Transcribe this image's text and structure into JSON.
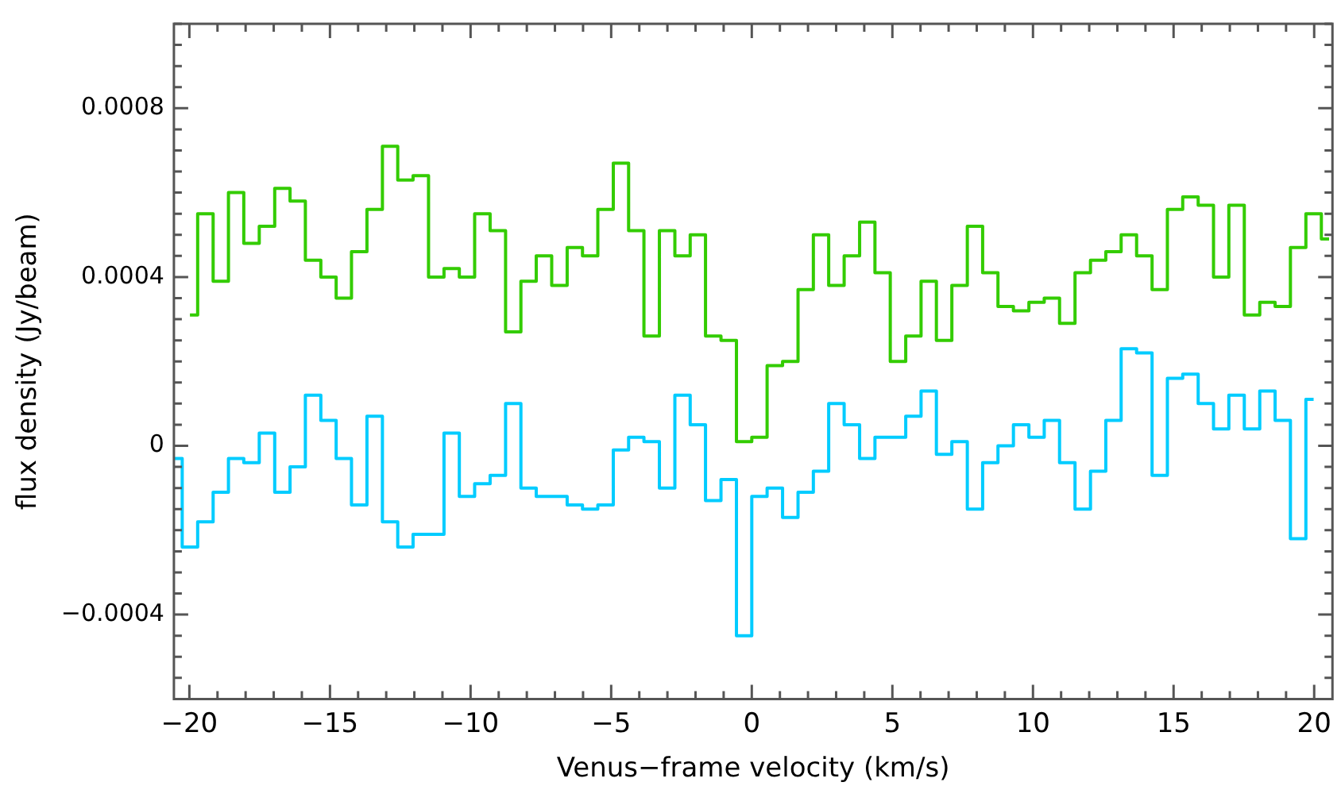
{
  "chart_data": {
    "type": "step",
    "xlabel": "Venus−frame velocity (km/s)",
    "ylabel": "flux density (Jy/beam)",
    "xlim": [
      -20.55,
      20.65
    ],
    "ylim": [
      -0.0006,
      0.001
    ],
    "xticks": [
      {
        "value": -20,
        "label": "−20"
      },
      {
        "value": -19,
        "label": null
      },
      {
        "value": -18,
        "label": null
      },
      {
        "value": -17,
        "label": null
      },
      {
        "value": -16,
        "label": null
      },
      {
        "value": -15,
        "label": "−15"
      },
      {
        "value": -14,
        "label": null
      },
      {
        "value": -13,
        "label": null
      },
      {
        "value": -12,
        "label": null
      },
      {
        "value": -11,
        "label": null
      },
      {
        "value": -10,
        "label": "−10"
      },
      {
        "value": -9,
        "label": null
      },
      {
        "value": -8,
        "label": null
      },
      {
        "value": -7,
        "label": null
      },
      {
        "value": -6,
        "label": null
      },
      {
        "value": -5,
        "label": "−5"
      },
      {
        "value": -4,
        "label": null
      },
      {
        "value": -3,
        "label": null
      },
      {
        "value": -2,
        "label": null
      },
      {
        "value": -1,
        "label": null
      },
      0,
      {
        "value": 1,
        "label": null
      },
      {
        "value": 2,
        "label": null
      },
      {
        "value": 3,
        "label": null
      },
      {
        "value": 4,
        "label": null
      },
      5,
      {
        "value": 6,
        "label": null
      },
      {
        "value": 7,
        "label": null
      },
      {
        "value": 8,
        "label": null
      },
      {
        "value": 9,
        "label": null
      },
      10,
      {
        "value": 11,
        "label": null
      },
      {
        "value": 12,
        "label": null
      },
      {
        "value": 13,
        "label": null
      },
      {
        "value": 14,
        "label": null
      },
      15,
      {
        "value": 16,
        "label": null
      },
      {
        "value": 17,
        "label": null
      },
      {
        "value": 18,
        "label": null
      },
      {
        "value": 19,
        "label": null
      },
      20
    ],
    "yticks": [
      {
        "value": -0.0006,
        "label": null
      },
      {
        "value": -0.00055,
        "label": null
      },
      {
        "value": -0.0005,
        "label": null
      },
      {
        "value": -0.00045,
        "label": null
      },
      {
        "value": -0.0004,
        "label": "−0.0004"
      },
      {
        "value": -0.00035,
        "label": null
      },
      {
        "value": -0.0003,
        "label": null
      },
      {
        "value": -0.00025,
        "label": null
      },
      {
        "value": -0.0002,
        "label": null
      },
      {
        "value": -0.00015,
        "label": null
      },
      {
        "value": -0.0001,
        "label": null
      },
      {
        "value": -5e-05,
        "label": null
      },
      0,
      {
        "value": 5e-05,
        "label": null
      },
      {
        "value": 0.0001,
        "label": null
      },
      {
        "value": 0.00015,
        "label": null
      },
      {
        "value": 0.0002,
        "label": null
      },
      {
        "value": 0.00025,
        "label": null
      },
      {
        "value": 0.0003,
        "label": null
      },
      {
        "value": 0.00035,
        "label": null
      },
      0.0004,
      {
        "value": 0.00045,
        "label": null
      },
      {
        "value": 0.0005,
        "label": null
      },
      {
        "value": 0.00055,
        "label": null
      },
      {
        "value": 0.0006,
        "label": null
      },
      {
        "value": 0.00065,
        "label": null
      },
      {
        "value": 0.0007,
        "label": null
      },
      {
        "value": 0.00075,
        "label": null
      },
      0.0008,
      {
        "value": 0.00085,
        "label": null
      },
      {
        "value": 0.0009,
        "label": null
      },
      {
        "value": 0.00095,
        "label": null
      },
      {
        "value": 0.001,
        "label": null
      }
    ],
    "marker": "none",
    "series": [
      {
        "color": "#33cc00",
        "x": [
          -19.98,
          -19.43,
          -18.88,
          -18.34,
          -17.79,
          -17.24,
          -16.69,
          -16.15,
          -15.6,
          -15.05,
          -14.51,
          -13.96,
          -13.41,
          -12.86,
          -12.32,
          -11.77,
          -11.22,
          -10.67,
          -10.13,
          -9.58,
          -9.03,
          -8.48,
          -7.94,
          -7.39,
          -6.84,
          -6.29,
          -5.75,
          -5.2,
          -4.65,
          -4.11,
          -3.56,
          -3.01,
          -2.46,
          -1.92,
          -1.37,
          -0.82,
          -0.27,
          0.27,
          0.82,
          1.37,
          1.92,
          2.46,
          3.01,
          3.56,
          4.11,
          4.65,
          5.2,
          5.75,
          6.29,
          6.84,
          7.39,
          7.94,
          8.48,
          9.03,
          9.58,
          10.13,
          10.67,
          11.22,
          11.77,
          12.32,
          12.86,
          13.41,
          13.96,
          14.51,
          15.05,
          15.6,
          16.15,
          16.69,
          17.24,
          17.79,
          18.34,
          18.88,
          19.43,
          19.98,
          20.53
        ],
        "values": [
          0.00031,
          0.00055,
          0.00039,
          0.0006,
          0.00048,
          0.00052,
          0.00061,
          0.00058,
          0.00044,
          0.0004,
          0.00035,
          0.00046,
          0.00056,
          0.00071,
          0.00063,
          0.00064,
          0.0004,
          0.00042,
          0.0004,
          0.00055,
          0.00051,
          0.00027,
          0.00039,
          0.00045,
          0.00038,
          0.00047,
          0.00045,
          0.00056,
          0.00067,
          0.00051,
          0.00026,
          0.00051,
          0.00045,
          0.0005,
          0.00026,
          0.00025,
          1e-05,
          2e-05,
          0.00019,
          0.0002,
          0.00037,
          0.0005,
          0.00038,
          0.00045,
          0.00053,
          0.00041,
          0.0002,
          0.00026,
          0.00039,
          0.00025,
          0.00038,
          0.00052,
          0.00041,
          0.00033,
          0.00032,
          0.00034,
          0.00035,
          0.00029,
          0.00041,
          0.00044,
          0.00046,
          0.0005,
          0.00045,
          0.00037,
          0.00056,
          0.00059,
          0.00057,
          0.0004,
          0.00057,
          0.00031,
          0.00034,
          0.00033,
          0.00047,
          0.00055,
          0.00049
        ]
      },
      {
        "color": "#00ccff",
        "x": [
          -20.53,
          -19.98,
          -19.43,
          -18.88,
          -18.34,
          -17.79,
          -17.24,
          -16.69,
          -16.15,
          -15.6,
          -15.05,
          -14.51,
          -13.96,
          -13.41,
          -12.86,
          -12.32,
          -11.77,
          -11.22,
          -10.67,
          -10.13,
          -9.58,
          -9.03,
          -8.48,
          -7.94,
          -7.39,
          -6.84,
          -6.29,
          -5.75,
          -5.2,
          -4.65,
          -4.11,
          -3.56,
          -3.01,
          -2.46,
          -1.92,
          -1.37,
          -0.82,
          -0.27,
          0.27,
          0.82,
          1.37,
          1.92,
          2.46,
          3.01,
          3.56,
          4.11,
          4.65,
          5.2,
          5.75,
          6.29,
          6.84,
          7.39,
          7.94,
          8.48,
          9.03,
          9.58,
          10.13,
          10.67,
          11.22,
          11.77,
          12.32,
          12.86,
          13.41,
          13.96,
          14.51,
          15.05,
          15.6,
          16.15,
          16.69,
          17.24,
          17.79,
          18.34,
          18.88,
          19.43,
          19.98
        ],
        "values": [
          -3e-05,
          -0.00024,
          -0.00018,
          -0.00011,
          -3e-05,
          -4e-05,
          3e-05,
          -0.00011,
          -5e-05,
          0.00012,
          6e-05,
          -3e-05,
          -0.00014,
          7e-05,
          -0.00018,
          -0.00024,
          -0.00021,
          -0.00021,
          3e-05,
          -0.00012,
          -9e-05,
          -7e-05,
          0.0001,
          -0.0001,
          -0.00012,
          -0.00012,
          -0.00014,
          -0.00015,
          -0.00014,
          -1e-05,
          2e-05,
          1e-05,
          -0.0001,
          0.00012,
          5e-05,
          -0.00013,
          -8e-05,
          -0.00045,
          -0.00012,
          -0.0001,
          -0.00017,
          -0.00011,
          -6e-05,
          0.0001,
          5e-05,
          -3e-05,
          2e-05,
          2e-05,
          7e-05,
          0.00013,
          -2e-05,
          1e-05,
          -0.00015,
          -4e-05,
          0,
          5e-05,
          2e-05,
          6e-05,
          -4e-05,
          -0.00015,
          -6e-05,
          6e-05,
          0.00023,
          0.00022,
          -7e-05,
          0.00016,
          0.00017,
          0.0001,
          4e-05,
          0.00012,
          4e-05,
          0.00013,
          6e-05,
          -0.00022,
          0.00011
        ]
      }
    ]
  }
}
